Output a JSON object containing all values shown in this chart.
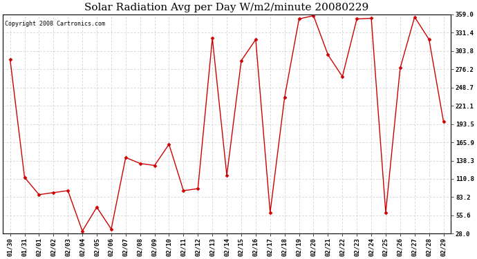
{
  "title": "Solar Radiation Avg per Day W/m2/minute 20080229",
  "copyright": "Copyright 2008 Cartronics.com",
  "dates": [
    "01/30",
    "01/31",
    "02/01",
    "02/02",
    "02/03",
    "02/04",
    "02/05",
    "02/06",
    "02/07",
    "02/08",
    "02/09",
    "02/10",
    "02/11",
    "02/12",
    "02/13",
    "02/14",
    "02/15",
    "02/16",
    "02/17",
    "02/18",
    "02/19",
    "02/20",
    "02/21",
    "02/22",
    "02/23",
    "02/24",
    "02/25",
    "02/26",
    "02/27",
    "02/28",
    "02/29"
  ],
  "values": [
    291.0,
    113.0,
    87.0,
    90.0,
    93.0,
    32.0,
    68.0,
    35.0,
    143.0,
    134.0,
    131.0,
    163.0,
    93.0,
    96.0,
    323.0,
    116.0,
    289.0,
    321.0,
    60.0,
    234.0,
    352.0,
    357.0,
    298.0,
    265.0,
    352.0,
    353.0,
    60.0,
    278.0,
    355.0,
    321.0,
    197.0
  ],
  "line_color": "#cc0000",
  "marker": "D",
  "marker_size": 2.5,
  "bg_color": "#ffffff",
  "plot_bg_color": "#ffffff",
  "grid_color": "#c8c8c8",
  "yticks": [
    28.0,
    55.6,
    83.2,
    110.8,
    138.3,
    165.9,
    193.5,
    221.1,
    248.7,
    276.2,
    303.8,
    331.4,
    359.0
  ],
  "ylim_min": 28.0,
  "ylim_max": 359.0,
  "title_fontsize": 11,
  "copyright_fontsize": 6,
  "tick_fontsize": 6.5
}
